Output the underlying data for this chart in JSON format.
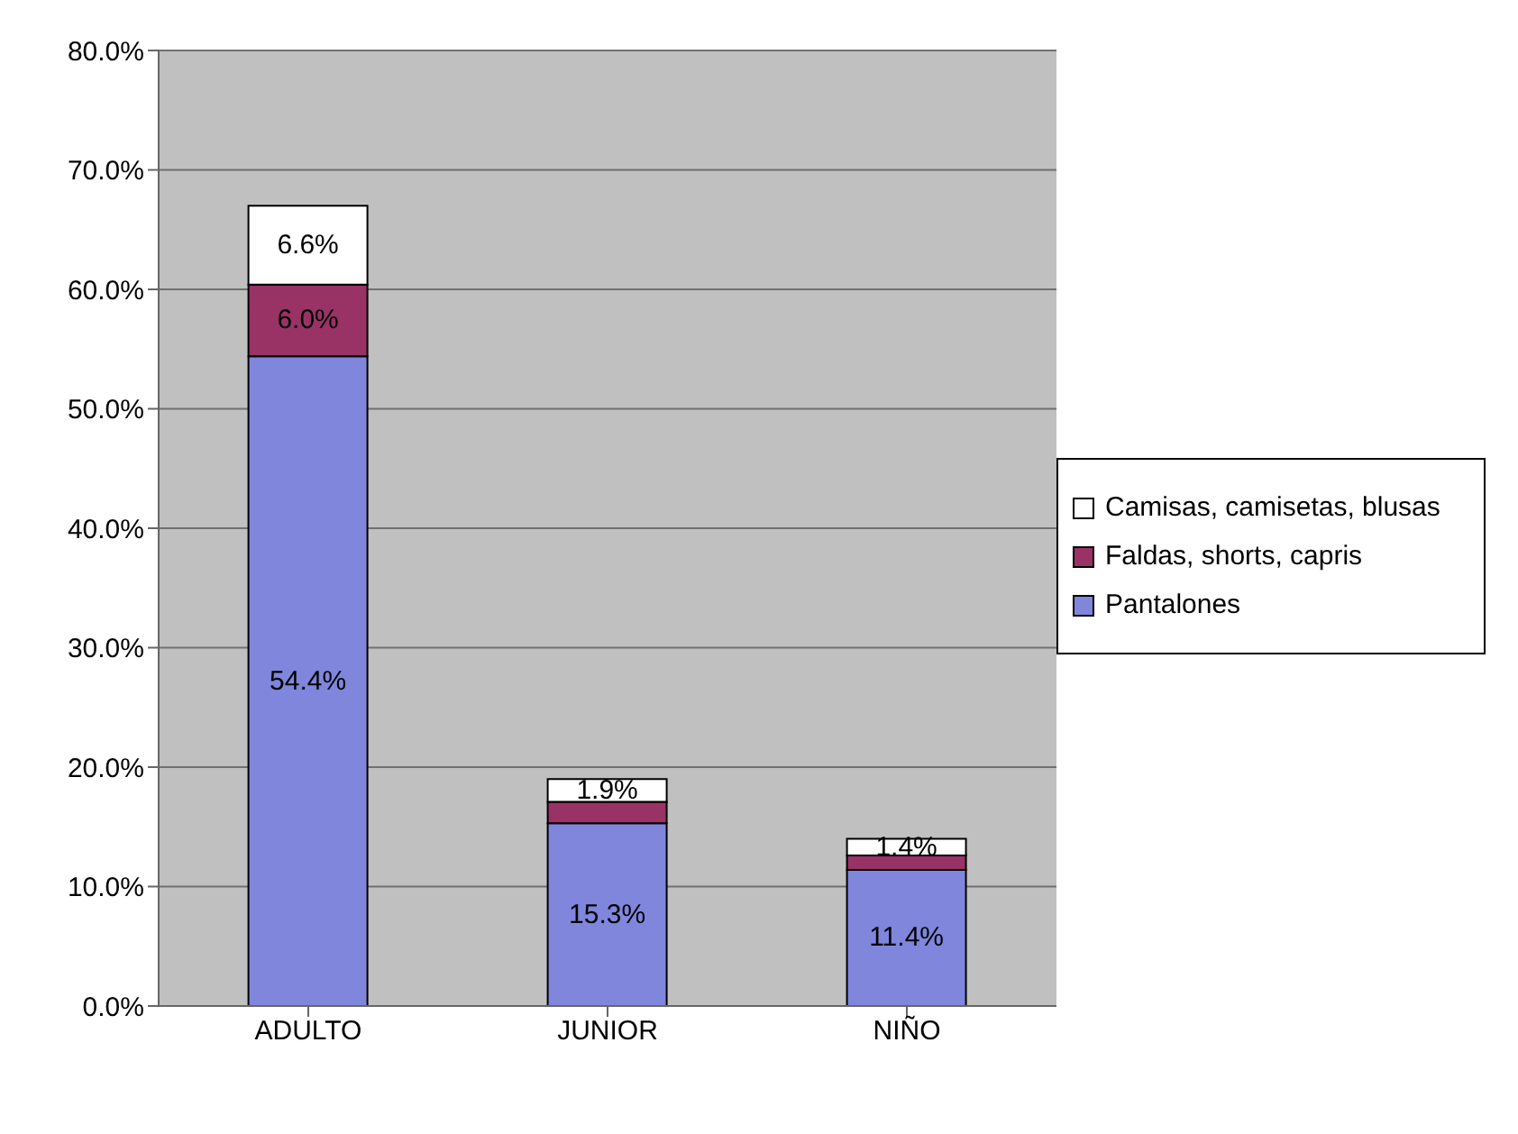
{
  "chart_data": {
    "type": "bar",
    "stacked": true,
    "categories": [
      "ADULTO",
      "JUNIOR",
      "NIÑO"
    ],
    "series": [
      {
        "name": "Pantalones",
        "color": "#7f86dc",
        "values": [
          54.4,
          15.3,
          11.4
        ],
        "value_labels": [
          "54.4%",
          "15.3%",
          "11.4%"
        ]
      },
      {
        "name": "Faldas, shorts, capris",
        "color": "#993366",
        "values": [
          6.0,
          1.8,
          1.2
        ],
        "value_labels": [
          "6.0%",
          null,
          null
        ]
      },
      {
        "name": "Camisas, camisetas, blusas",
        "color": "#ffffff",
        "values": [
          6.6,
          1.9,
          1.4
        ],
        "value_labels": [
          "6.6%",
          "1.9%",
          "1.4%"
        ]
      }
    ],
    "ylim": [
      0,
      80
    ],
    "yticks": [
      {
        "value": 0,
        "label": "0.0%"
      },
      {
        "value": 10,
        "label": "10.0%"
      },
      {
        "value": 20,
        "label": "20.0%"
      },
      {
        "value": 30,
        "label": "30.0%"
      },
      {
        "value": 40,
        "label": "40.0%"
      },
      {
        "value": 50,
        "label": "50.0%"
      },
      {
        "value": 60,
        "label": "60.0%"
      },
      {
        "value": 70,
        "label": "70.0%"
      },
      {
        "value": 80,
        "label": "80.0%"
      }
    ],
    "grid": "y",
    "legend": "right"
  }
}
